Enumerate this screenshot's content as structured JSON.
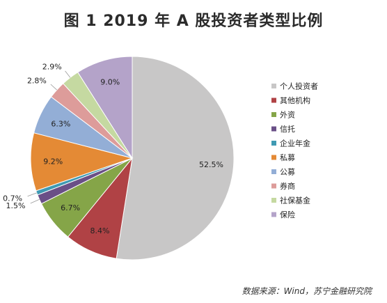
{
  "chart_data": {
    "type": "pie",
    "title": "图 1 2019 年 A 股投资者类型比例",
    "categories": [
      "个人投资者",
      "其他机构",
      "外资",
      "信托",
      "企业年金",
      "私募",
      "公募",
      "券商",
      "社保基金",
      "保险"
    ],
    "values": [
      52.5,
      8.4,
      6.7,
      1.5,
      0.7,
      9.2,
      6.3,
      2.8,
      2.9,
      9.0
    ],
    "value_labels": [
      "52.5%",
      "8.4%",
      "6.7%",
      "1.5%",
      "0.7%",
      "9.2%",
      "6.3%",
      "2.8%",
      "2.9%",
      "9.0%"
    ],
    "colors": [
      "#c8c7c7",
      "#b04245",
      "#85a548",
      "#6a4f87",
      "#3f9ab3",
      "#e48a35",
      "#93aed6",
      "#dd9c9a",
      "#c5d9a1",
      "#b4a3c9"
    ],
    "start_angle": "12 o'clock",
    "direction": "clockwise",
    "legend_position": "right"
  },
  "source": "数据来源：Wind，苏宁金融研究院"
}
